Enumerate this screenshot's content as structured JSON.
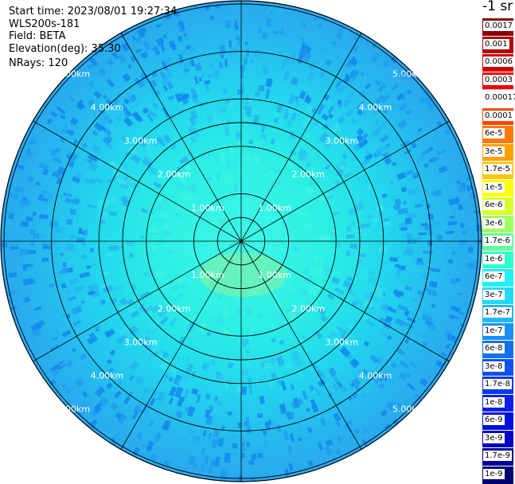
{
  "header": {
    "start_time": "Start time: 2023/08/01 19:27:34",
    "instrument": "WLS200s-181",
    "field": "Field: BETA",
    "elevation": "Elevation(deg): 35.30",
    "nrays": "NRays: 120"
  },
  "plot": {
    "ring_labels": [
      "1.00km",
      "2.00km",
      "3.00km",
      "4.00km",
      "5.00km"
    ],
    "max_range_km": 5.0,
    "spoke_count": 12,
    "background_color": "#30c8f0"
  },
  "colorbar": {
    "title": "-1 sr",
    "bins": [
      {
        "label": "0.0017",
        "color": "#8b0000"
      },
      {
        "label": "0.001",
        "color": "#b20000"
      },
      {
        "label": "0.0006",
        "color": "#d40000"
      },
      {
        "label": "0.0003",
        "color": "#f00000"
      },
      {
        "label": "0.00017",
        "color": "#ffffff"
      },
      {
        "label": "0.0001",
        "color": "#ff4800"
      },
      {
        "label": "6e-5",
        "color": "#ff7800"
      },
      {
        "label": "3e-5",
        "color": "#ffa000"
      },
      {
        "label": "1.7e-5",
        "color": "#ffc800"
      },
      {
        "label": "1e-5",
        "color": "#ffff00"
      },
      {
        "label": "6e-6",
        "color": "#d4ff2a"
      },
      {
        "label": "3e-6",
        "color": "#a0ff60"
      },
      {
        "label": "1.7e-6",
        "color": "#60ff9c"
      },
      {
        "label": "1e-6",
        "color": "#30ffd0"
      },
      {
        "label": "6e-7",
        "color": "#20f0f0"
      },
      {
        "label": "3e-7",
        "color": "#20d8f8"
      },
      {
        "label": "1.7e-7",
        "color": "#20b8f8"
      },
      {
        "label": "1e-7",
        "color": "#1890f8"
      },
      {
        "label": "6e-8",
        "color": "#1070f0"
      },
      {
        "label": "3e-8",
        "color": "#1050f0"
      },
      {
        "label": "1.7e-8",
        "color": "#0838f0"
      },
      {
        "label": "1e-8",
        "color": "#0820e8"
      },
      {
        "label": "6e-9",
        "color": "#0010d8"
      },
      {
        "label": "3e-9",
        "color": "#0000c0"
      },
      {
        "label": "1.7e-9",
        "color": "#000098"
      },
      {
        "label": "1e-9",
        "color": "#000070"
      }
    ]
  }
}
